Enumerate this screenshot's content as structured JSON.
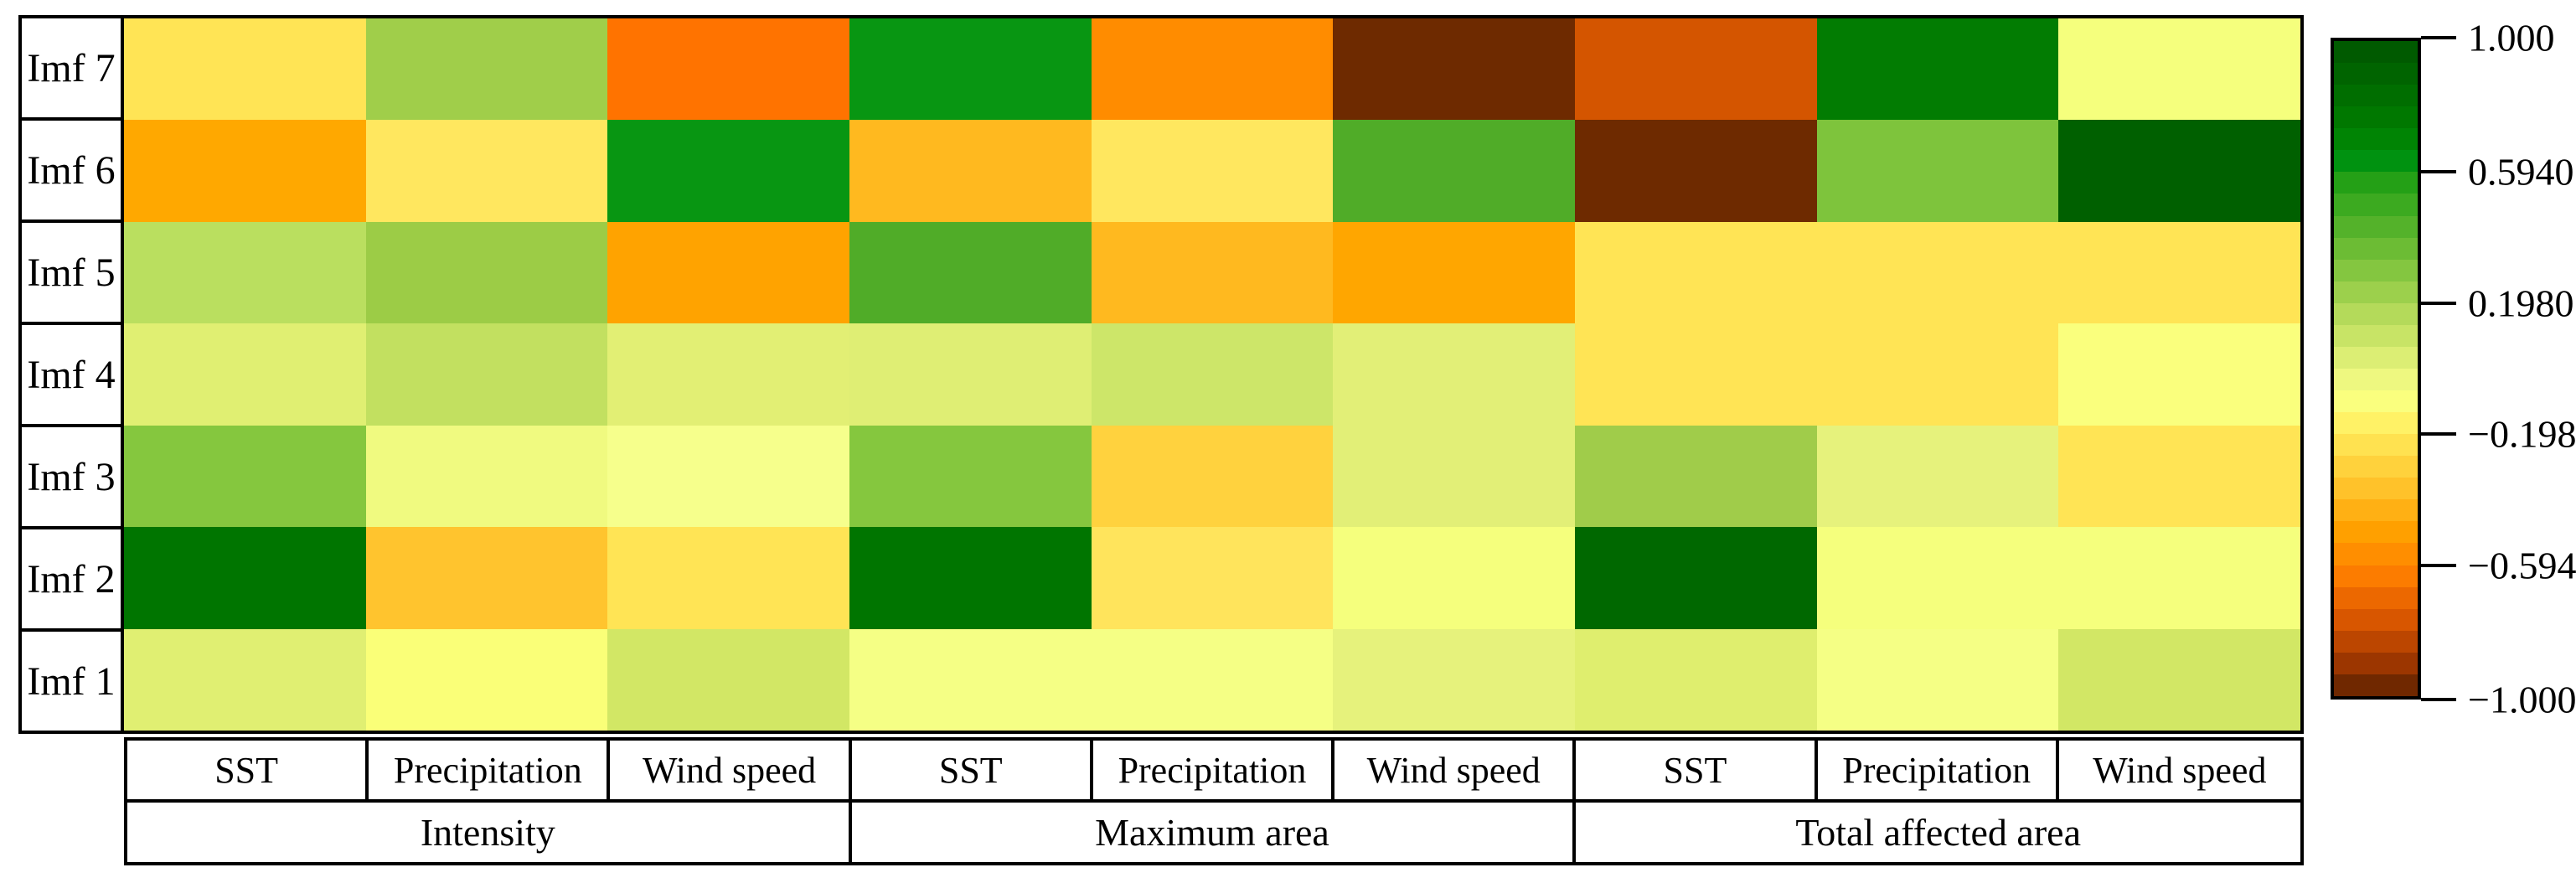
{
  "chart_data": {
    "type": "heatmap",
    "title": "",
    "row_labels": [
      "Imf 7",
      "Imf 6",
      "Imf 5",
      "Imf 4",
      "Imf 3",
      "Imf 2",
      "Imf 1"
    ],
    "column_groups": [
      {
        "label": "Intensity",
        "variables": [
          "SST",
          "Precipitation",
          "Wind speed"
        ]
      },
      {
        "label": "Maximum area",
        "variables": [
          "SST",
          "Precipitation",
          "Wind speed"
        ]
      },
      {
        "label": "Total affected area",
        "variables": [
          "SST",
          "Precipitation",
          "Wind speed"
        ]
      }
    ],
    "column_labels": [
      "SST",
      "Precipitation",
      "Wind speed",
      "SST",
      "Precipitation",
      "Wind speed",
      "SST",
      "Precipitation",
      "Wind speed"
    ],
    "values": [
      [
        -0.23,
        0.22,
        -0.66,
        0.62,
        -0.58,
        -0.95,
        -0.78,
        0.8,
        -0.08
      ],
      [
        -0.5,
        -0.21,
        0.62,
        -0.42,
        -0.21,
        0.47,
        -0.95,
        0.3,
        0.93
      ],
      [
        0.13,
        0.22,
        -0.5,
        0.47,
        -0.42,
        -0.5,
        -0.23,
        -0.23,
        -0.23
      ],
      [
        0.03,
        0.11,
        0.03,
        0.03,
        0.08,
        0.01,
        -0.23,
        -0.23,
        -0.08
      ],
      [
        0.28,
        -0.03,
        -0.08,
        0.28,
        -0.3,
        0.01,
        0.22,
        -0.01,
        -0.23
      ],
      [
        0.84,
        -0.36,
        -0.23,
        0.84,
        -0.22,
        -0.08,
        0.88,
        -0.08,
        -0.05
      ],
      [
        0.03,
        -0.07,
        0.07,
        -0.08,
        -0.08,
        -0.01,
        0.03,
        -0.08,
        0.07
      ]
    ],
    "cell_colors": [
      [
        "#FFE455",
        "#A0CE4A",
        "#FF7300",
        "#089612",
        "#FF8C00",
        "#6E2A00",
        "#D45500",
        "#027C02",
        "#F5FF7D"
      ],
      [
        "#FFA800",
        "#FFE75F",
        "#089612",
        "#FFB91F",
        "#FFE75F",
        "#50AC28",
        "#6E2A00",
        "#7EC43C",
        "#006000"
      ],
      [
        "#BADF5F",
        "#9CCC46",
        "#FFA300",
        "#50AC28",
        "#FFB91F",
        "#FFA600",
        "#FFE455",
        "#FFE455",
        "#FFE455"
      ],
      [
        "#E0EF72",
        "#C2E060",
        "#E2EF74",
        "#DFEE74",
        "#CDE669",
        "#E2EF77",
        "#FFE455",
        "#FFE455",
        "#FAFF7D"
      ],
      [
        "#85C73E",
        "#F0FA80",
        "#F6FF8C",
        "#85C73E",
        "#FFD23E",
        "#E2EF77",
        "#A0CC4A",
        "#E6F27C",
        "#FFE455"
      ],
      [
        "#007500",
        "#FFC42E",
        "#FFE455",
        "#007500",
        "#FFE45C",
        "#F5FF7D",
        "#006800",
        "#F5FF7D",
        "#F5FF7D"
      ],
      [
        "#E0EF72",
        "#FAFF78",
        "#D2E765",
        "#F5FF85",
        "#F5FF85",
        "#E6F27C",
        "#DFEE6E",
        "#F5FF85",
        "#D2E765"
      ]
    ],
    "colorbar": {
      "tick_labels": [
        "1.000",
        "0.5940",
        "0.1980",
        "−0.1980",
        "−0.5940",
        "−1.000"
      ],
      "tick_values": [
        1.0,
        0.594,
        0.198,
        -0.198,
        -0.594,
        -1.0
      ],
      "range": [
        -1.0,
        1.0
      ],
      "orientation": "vertical",
      "palette_steps": [
        "#005A00",
        "#006400",
        "#006E00",
        "#007800",
        "#008404",
        "#009210",
        "#24A016",
        "#3CAA20",
        "#54B22A",
        "#6CBC34",
        "#84C640",
        "#9CD04C",
        "#B4DA5A",
        "#C8E466",
        "#DCEE74",
        "#EEF880",
        "#FAFF7E",
        "#FFF266",
        "#FFE250",
        "#FFD23C",
        "#FFC22A",
        "#FFB014",
        "#FFA000",
        "#FF8E00",
        "#FC7C00",
        "#EC6800",
        "#D85600",
        "#BC4600",
        "#9C3600",
        "#702800"
      ]
    },
    "layout": {
      "grid_on": false,
      "legend_position": "right-colorbar",
      "border_color": "#000000",
      "background_color": "#FFFFFF"
    }
  }
}
